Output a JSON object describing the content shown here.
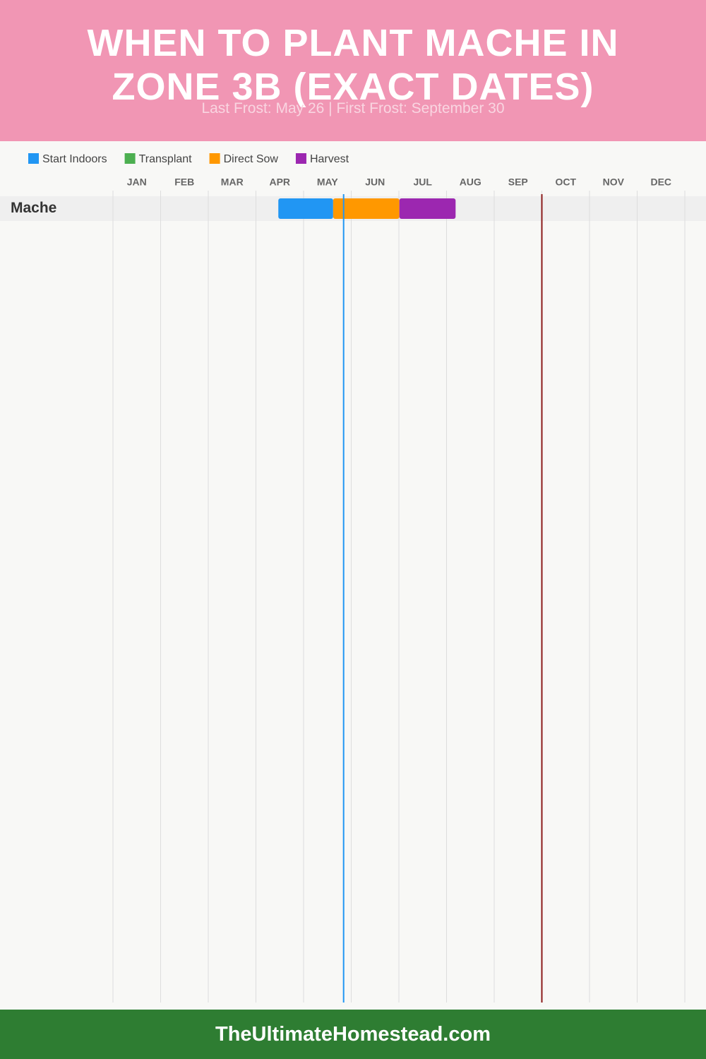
{
  "chart_data": {
    "type": "gantt",
    "title": "WHEN TO PLANT MACHE IN ZONE 3B (EXACT DATES)",
    "subtitle": "Last Frost: May 26 | First Frost: September 30",
    "categories": [
      "Mache"
    ],
    "series": [
      {
        "name": "Start Indoors",
        "color": "#2196f3",
        "start": [
          3.47
        ],
        "end": [
          4.62
        ]
      },
      {
        "name": "Transplant",
        "color": "#4caf50",
        "start": [
          null
        ],
        "end": [
          null
        ]
      },
      {
        "name": "Direct Sow",
        "color": "#ff9800",
        "start": [
          4.62
        ],
        "end": [
          6.01
        ]
      },
      {
        "name": "Harvest",
        "color": "#9c27b0",
        "start": [
          6.01
        ],
        "end": [
          7.19
        ]
      }
    ],
    "xlim": [
      0,
      12
    ],
    "xticks": [
      {
        "value": 0.5,
        "label": "JAN"
      },
      {
        "value": 1.5,
        "label": "FEB"
      },
      {
        "value": 2.5,
        "label": "MAR"
      },
      {
        "value": 3.5,
        "label": "APR"
      },
      {
        "value": 4.5,
        "label": "MAY"
      },
      {
        "value": 5.5,
        "label": "JUN"
      },
      {
        "value": 6.5,
        "label": "JUL"
      },
      {
        "value": 7.5,
        "label": "AUG"
      },
      {
        "value": 8.5,
        "label": "SEP"
      },
      {
        "value": 9.5,
        "label": "OCT"
      },
      {
        "value": 10.5,
        "label": "NOV"
      },
      {
        "value": 11.5,
        "label": "DEC"
      }
    ],
    "grid": true,
    "markers": [
      {
        "value": 4.84,
        "color": "#2196f3"
      },
      {
        "value": 9.0,
        "color": "#8b1a1a"
      }
    ],
    "footer": "TheUltimateHomestead.com"
  }
}
